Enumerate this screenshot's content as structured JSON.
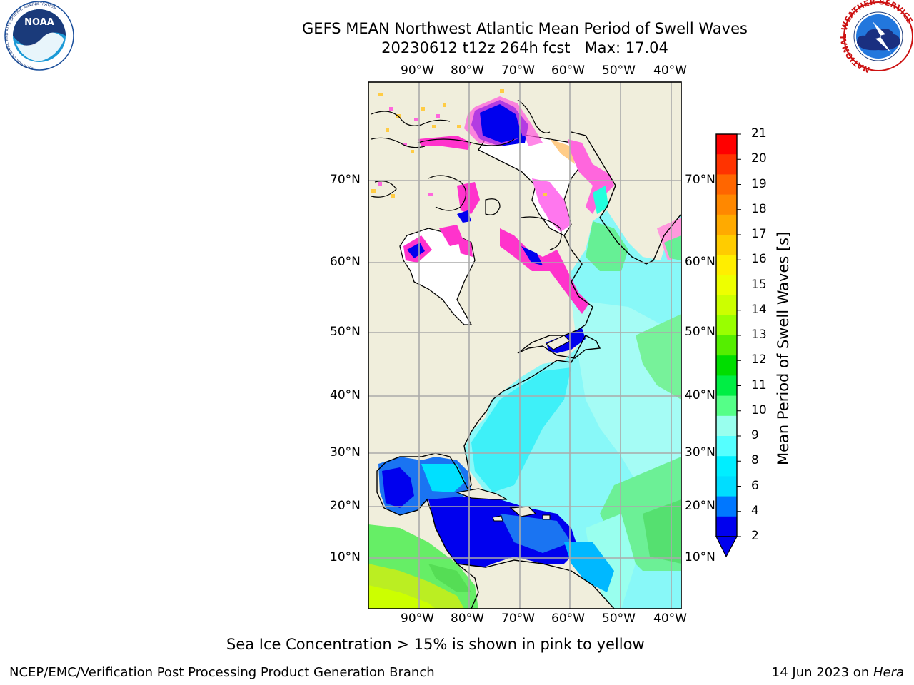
{
  "title": {
    "line1": "GEFS MEAN Northwest Atlantic Mean Period of Swell Waves",
    "line2": "20230612 t12z 264h fcst   Max: 17.04"
  },
  "map": {
    "lon_labels": [
      "90°W",
      "80°W",
      "70°W",
      "60°W",
      "50°W",
      "40°W"
    ],
    "lat_labels": [
      "70°N",
      "60°N",
      "50°N",
      "40°N",
      "30°N",
      "20°N",
      "10°N"
    ],
    "colors": {
      "land": "#f0eedc",
      "grid": "#aaaaaa",
      "coast": "#000000"
    }
  },
  "colorbar": {
    "title": "Mean Period of Swell Waves [s]",
    "ticks": [
      "21",
      "20",
      "19",
      "18",
      "17",
      "16",
      "15",
      "14",
      "13",
      "12",
      "11",
      "10",
      "9",
      "8",
      "6",
      "4",
      "2"
    ],
    "colors": [
      "#ff0000",
      "#ff3300",
      "#ff6600",
      "#ff8800",
      "#ffaa00",
      "#ffcc00",
      "#ffee00",
      "#eeff00",
      "#ccff00",
      "#99ff00",
      "#55ee00",
      "#00dd00",
      "#00ee44",
      "#55ff88",
      "#99ffee",
      "#55ffff",
      "#00eeff",
      "#00ddff",
      "#0077ff",
      "#0000ee"
    ]
  },
  "ice_note": "Sea Ice Concentration > 15% is shown in pink to yellow",
  "footer": {
    "left": "NCEP/EMC/Verification Post Processing Product Generation Branch",
    "right_date": "14 Jun 2023 on ",
    "right_host": "Hera"
  },
  "logos": {
    "noaa_text": "NOAA",
    "noaa_ring": "NATIONAL OCEANIC AND ATMOSPHERIC ADMINISTRATION",
    "noaa_ring_bottom": "U.S. DEPARTMENT OF COMMERCE",
    "nws_ring": "NATIONAL WEATHER SERVICE"
  }
}
